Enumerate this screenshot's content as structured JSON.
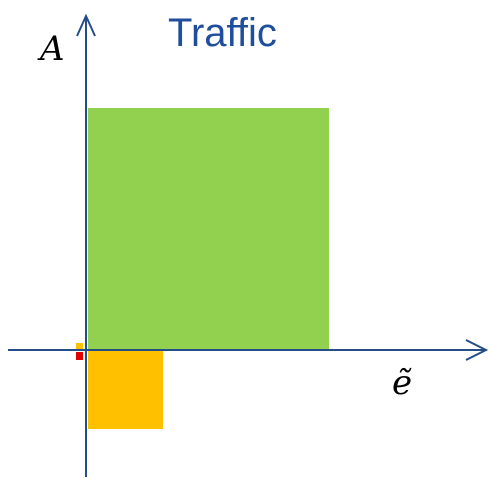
{
  "title": "Traffic",
  "axes": {
    "y_label": "A",
    "x_label": "ẽ"
  },
  "colors": {
    "axis": "#254d87",
    "title": "#1f4e9c",
    "green_region": "#92d050",
    "orange_region": "#ffc000",
    "red_marker": "#e00000",
    "yellow_marker": "#ffc000"
  },
  "regions": [
    {
      "name": "green-region",
      "color": "green_region",
      "quadrant": "upper-right"
    },
    {
      "name": "orange-region",
      "color": "orange_region",
      "quadrant": "lower-right"
    },
    {
      "name": "red-marker",
      "color": "red_marker",
      "quadrant": "lower-left"
    },
    {
      "name": "yellow-marker",
      "color": "yellow_marker",
      "quadrant": "upper-left"
    }
  ]
}
